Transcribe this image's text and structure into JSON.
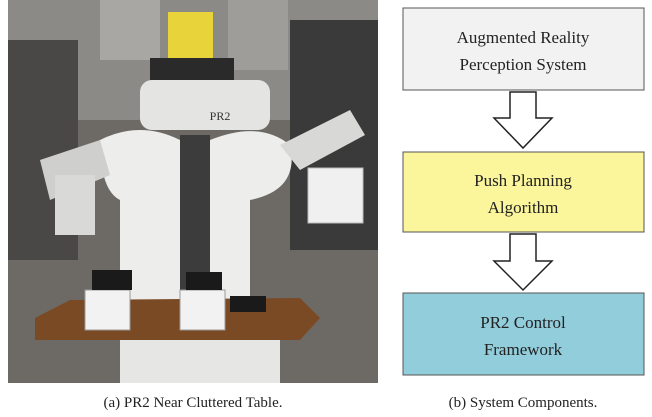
{
  "figure": {
    "panels": [
      {
        "caption": "(a) PR2 Near Cluttered Table.",
        "image_text": "PR2"
      },
      {
        "caption": "(b) System Components.",
        "nodes": [
          {
            "lines": [
              "Augmented Reality",
              "Perception System"
            ]
          },
          {
            "lines": [
              "Push Planning",
              "Algorithm"
            ]
          },
          {
            "lines": [
              "PR2 Control",
              "Framework"
            ]
          }
        ]
      }
    ]
  }
}
